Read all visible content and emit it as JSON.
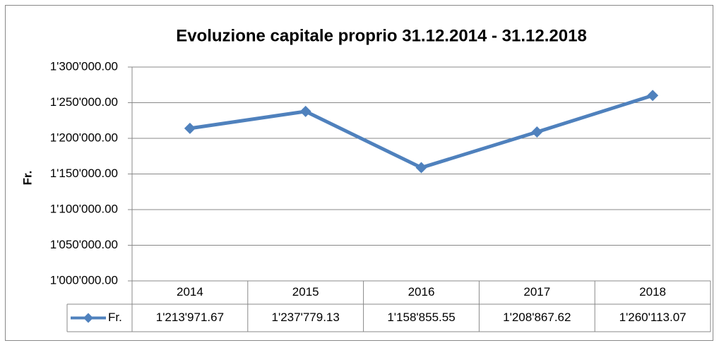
{
  "chart_data": {
    "type": "line",
    "title": "Evoluzione capitale proprio 31.12.2014 - 31.12.2018",
    "y_label": "Fr.",
    "categories": [
      "2014",
      "2015",
      "2016",
      "2017",
      "2018"
    ],
    "series": [
      {
        "name": "Fr.",
        "color": "#4f81bd",
        "values": [
          1213971.67,
          1237779.13,
          1158855.55,
          1208867.62,
          1260113.07
        ],
        "value_labels": [
          "1'213'971.67",
          "1'237'779.13",
          "1'158'855.55",
          "1'208'867.62",
          "1'260'113.07"
        ]
      }
    ],
    "ylim": [
      1000000,
      1300000
    ],
    "yticks": [
      {
        "value": 1000000,
        "label": "1'000'000.00"
      },
      {
        "value": 1050000,
        "label": "1'050'000.00"
      },
      {
        "value": 1100000,
        "label": "1'100'000.00"
      },
      {
        "value": 1150000,
        "label": "1'150'000.00"
      },
      {
        "value": 1200000,
        "label": "1'200'000.00"
      },
      {
        "value": 1250000,
        "label": "1'250'000.00"
      },
      {
        "value": 1300000,
        "label": "1'300'000.00"
      }
    ],
    "grid": true,
    "data_table": true
  }
}
